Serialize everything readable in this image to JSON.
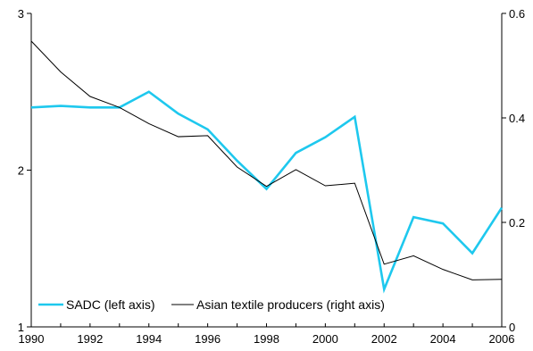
{
  "chart_data": {
    "type": "line",
    "title": "",
    "xlabel": "",
    "x": [
      1990,
      1991,
      1992,
      1993,
      1994,
      1995,
      1996,
      1997,
      1998,
      1999,
      2000,
      2001,
      2002,
      2003,
      2004,
      2005,
      2006
    ],
    "xlim": [
      1990,
      2006
    ],
    "x_ticks": [
      "1990",
      "1992",
      "1994",
      "1996",
      "1998",
      "2000",
      "2002",
      "2004",
      "2006"
    ],
    "y_left": {
      "lim": [
        1,
        3
      ],
      "ticks": [
        "1",
        "2",
        "3"
      ]
    },
    "y_right": {
      "lim": [
        0,
        0.6
      ],
      "ticks": [
        "0",
        "0.2",
        "0.4",
        "0.6"
      ]
    },
    "grid": false,
    "legend_position": "bottom-left",
    "series": [
      {
        "name": "SADC (left axis)",
        "axis": "left",
        "color": "#1ec8ee",
        "values": [
          2.4,
          2.41,
          2.4,
          2.4,
          2.5,
          2.36,
          2.26,
          2.06,
          1.88,
          2.11,
          2.21,
          2.34,
          1.24,
          1.7,
          1.66,
          1.47,
          1.76
        ]
      },
      {
        "name": "Asian textile producers (right axis)",
        "axis": "right",
        "color": "#000000",
        "values": [
          0.547,
          0.488,
          0.441,
          0.42,
          0.389,
          0.364,
          0.366,
          0.306,
          0.269,
          0.301,
          0.27,
          0.275,
          0.12,
          0.136,
          0.11,
          0.09,
          0.091
        ]
      }
    ]
  }
}
